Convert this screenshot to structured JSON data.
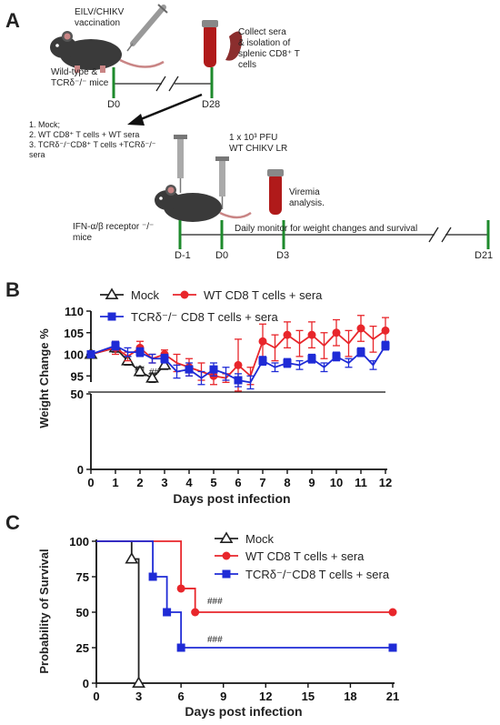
{
  "panel_a": {
    "letter": "A",
    "vaccination": [
      "EILV/CHIKV",
      "vaccination"
    ],
    "collect": [
      "Collect sera",
      "& isolation of",
      "splenic CD8⁺ T",
      "cells"
    ],
    "mice_top": [
      "Wild-type &",
      "TCRδ⁻/⁻ mice"
    ],
    "d0": "D0",
    "d28": "D28",
    "groups": [
      "1.  Mock;",
      "2.  WT CD8⁺ T cells + WT sera",
      "3.  TCRδ⁻/⁻CD8⁺ T cells +TCRδ⁻/⁻",
      "     sera"
    ],
    "challenge": [
      "1 x 10³ PFU",
      "WT CHIKV LR"
    ],
    "viremia": [
      "Viremia",
      "analysis."
    ],
    "mice_bottom": [
      "IFN-α/β receptor ⁻/⁻",
      "mice"
    ],
    "monitor": "Daily  monitor for  weight changes and survival",
    "tl_labels": [
      "D-1",
      "D0",
      "D3",
      "D21"
    ]
  },
  "panel_b": {
    "letter": "B",
    "ylabel": "Weight Change %",
    "xlabel": "Days post infection",
    "annotations": [
      "##",
      "##"
    ]
  },
  "panel_c": {
    "letter": "C",
    "ylabel": "Probability of Survival",
    "xlabel": "Days post infection",
    "annotations": [
      "###",
      "###"
    ]
  },
  "chart_data": [
    {
      "type": "line",
      "panel": "B",
      "xlabel": "Days post infection",
      "ylabel": "Weight Change %",
      "x_ticks": [
        0,
        1,
        2,
        3,
        4,
        5,
        6,
        7,
        8,
        9,
        10,
        11,
        12
      ],
      "y_ticks_upper": [
        95,
        100,
        105,
        110
      ],
      "y_ticks_lower": [
        0,
        50
      ],
      "xlim": [
        0,
        12
      ],
      "ylim": [
        0,
        110
      ],
      "y_axis_break": [
        50,
        94
      ],
      "legend_position": "top",
      "series": [
        {
          "name": "Mock",
          "color": "#222222",
          "marker": "open-triangle",
          "x": [
            0,
            1,
            1.5,
            2,
            2.5,
            3
          ],
          "y": [
            100,
            101.5,
            98.5,
            96,
            94.5,
            97.5
          ],
          "err": [
            0.5,
            1,
            1,
            1,
            1,
            1
          ]
        },
        {
          "name": "WT CD8 T cells + sera",
          "color": "#e8262b",
          "marker": "filled-circle",
          "x": [
            0,
            1,
            1.5,
            2,
            2.5,
            3,
            3.5,
            4,
            4.5,
            5,
            5.5,
            6,
            6.5,
            7,
            7.5,
            8,
            8.5,
            9,
            9.5,
            10,
            10.5,
            11,
            11.5,
            12
          ],
          "y": [
            100,
            101.5,
            99.5,
            101.5,
            99,
            100,
            98,
            97,
            96,
            95,
            94.5,
            97.5,
            95,
            103,
            101.5,
            104.5,
            102.5,
            104.5,
            102,
            105,
            102.5,
            106,
            103.5,
            105.5
          ],
          "err": [
            0.5,
            1.5,
            1,
            1.5,
            1,
            1,
            2,
            2,
            2,
            2,
            1,
            6,
            2,
            4,
            3,
            3,
            3,
            3,
            3,
            3,
            3,
            3,
            3,
            3
          ]
        },
        {
          "name": "TCRδ⁻/⁻ CD8 T cells + sera",
          "color": "#1f2bd6",
          "marker": "filled-square",
          "x": [
            0,
            1,
            1.5,
            2,
            2.5,
            3,
            3.5,
            4,
            4.5,
            5,
            5.5,
            6,
            6.5,
            7,
            7.5,
            8,
            8.5,
            9,
            9.5,
            10,
            10.5,
            11,
            11.5,
            12
          ],
          "y": [
            100,
            102,
            100.5,
            100.5,
            99,
            99,
            96,
            96.5,
            94.5,
            96.5,
            95.5,
            94,
            93.5,
            98.5,
            97,
            98,
            97.5,
            99,
            97,
            99.5,
            98,
            100.5,
            97.5,
            102
          ],
          "err": [
            0.5,
            1,
            1,
            1,
            1,
            1,
            1.5,
            1.5,
            1.5,
            1.5,
            1.5,
            1.5,
            1.5,
            1,
            1,
            1,
            1,
            1,
            1,
            1,
            1,
            1,
            1,
            1
          ]
        }
      ]
    },
    {
      "type": "line",
      "panel": "C",
      "xlabel": "Days post infection",
      "ylabel": "Probability of Survival",
      "x_ticks": [
        0,
        3,
        6,
        9,
        12,
        15,
        18,
        21
      ],
      "y_ticks": [
        0,
        25,
        50,
        75,
        100
      ],
      "xlim": [
        0,
        21
      ],
      "ylim": [
        0,
        100
      ],
      "legend_position": "top-right",
      "series": [
        {
          "name": "Mock",
          "color": "#222222",
          "marker": "open-triangle",
          "x": [
            0,
            2.5,
            3
          ],
          "y": [
            100,
            87.5,
            0
          ]
        },
        {
          "name": "WT CD8 T cells + sera",
          "color": "#e8262b",
          "marker": "filled-circle",
          "x": [
            0,
            6,
            7,
            21
          ],
          "y": [
            100,
            66.7,
            50,
            50
          ]
        },
        {
          "name": "TCRδ⁻/⁻CD8 T cells + sera",
          "color": "#1f2bd6",
          "marker": "filled-square",
          "x": [
            0,
            4,
            5,
            6,
            21
          ],
          "y": [
            100,
            75,
            50,
            25,
            25
          ]
        }
      ]
    }
  ]
}
